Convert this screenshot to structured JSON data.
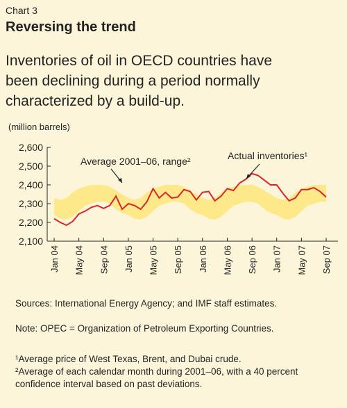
{
  "chart_data": {
    "type": "line",
    "label": "Chart 3",
    "title": "Reversing the trend",
    "subtitle": [
      "Inventories of oil in OECD countries have",
      "been declining during a period normally",
      "characterized by a build-up."
    ],
    "ylabel": "(million barrels)",
    "categories": [
      "Jan 04",
      null,
      null,
      null,
      "May 04",
      null,
      null,
      null,
      "Sep 04",
      null,
      null,
      null,
      "Jan 05",
      null,
      null,
      null,
      "May 05",
      null,
      null,
      null,
      "Sep 05",
      null,
      null,
      null,
      "Jan 06",
      null,
      null,
      null,
      "May 06",
      null,
      null,
      null,
      "Sep 06",
      null,
      null,
      null,
      "Jan 07",
      null,
      null,
      null,
      "May 07",
      null,
      null,
      null,
      "Sep 07"
    ],
    "band": {
      "name": "Average 2001–06, range²",
      "color": "#fde98a",
      "low": [
        2240,
        2220,
        2215,
        2230,
        2260,
        2290,
        2300,
        2310,
        2310,
        2300,
        2270,
        2250,
        2240,
        2220,
        2215,
        2230,
        2260,
        2290,
        2300,
        2310,
        2310,
        2300,
        2270,
        2250,
        2240,
        2220,
        2215,
        2230,
        2260,
        2290,
        2300,
        2310,
        2310,
        2300,
        2270,
        2250,
        2240,
        2220,
        2215,
        2230,
        2260,
        2290,
        2300,
        2310,
        2310
      ],
      "high": [
        2330,
        2320,
        2330,
        2360,
        2380,
        2390,
        2400,
        2400,
        2400,
        2390,
        2370,
        2350,
        2330,
        2320,
        2330,
        2360,
        2380,
        2390,
        2400,
        2400,
        2400,
        2390,
        2370,
        2350,
        2330,
        2320,
        2330,
        2360,
        2380,
        2390,
        2400,
        2400,
        2400,
        2390,
        2370,
        2350,
        2330,
        2320,
        2330,
        2360,
        2380,
        2390,
        2400,
        2400,
        2400
      ]
    },
    "series": [
      {
        "name": "Actual inventories¹",
        "color": "#d7262b",
        "values": [
          2220,
          2200,
          2185,
          2205,
          2245,
          2260,
          2280,
          2290,
          2275,
          2290,
          2340,
          2270,
          2300,
          2290,
          2270,
          2310,
          2380,
          2330,
          2360,
          2330,
          2335,
          2375,
          2365,
          2320,
          2360,
          2365,
          2315,
          2340,
          2380,
          2370,
          2410,
          2430,
          2460,
          2450,
          2425,
          2400,
          2400,
          2355,
          2315,
          2330,
          2375,
          2375,
          2385,
          2365,
          2335
        ]
      }
    ],
    "ylim": [
      2100,
      2600
    ],
    "yticks": [
      {
        "value": 2100,
        "label": "2,100"
      },
      {
        "value": 2200,
        "label": "2,200"
      },
      {
        "value": 2300,
        "label": "2,300"
      },
      {
        "value": 2400,
        "label": "2,400"
      },
      {
        "value": 2500,
        "label": "2,500"
      },
      {
        "value": 2600,
        "label": "2,600"
      }
    ],
    "grid": false,
    "notes": [
      "Sources:   International Energy Agency; and IMF staff estimates.",
      "Note: OPEC = Organization of Petroleum Exporting Countries.",
      "¹Average price of West Texas, Brent, and Dubai crude.",
      "²Average of each calendar month during 2001–06, with a 40 percent confidence interval based on past deviations."
    ]
  }
}
